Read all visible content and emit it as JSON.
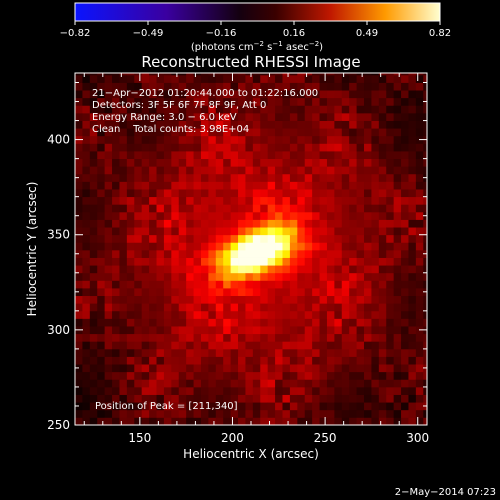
{
  "chart_data": {
    "type": "heatmap",
    "title": "Reconstructed RHESSI Image",
    "xlabel": "Heliocentric X (arcsec)",
    "ylabel": "Heliocentric Y (arcsec)",
    "xlim": [
      115,
      305
    ],
    "ylim": [
      250,
      435
    ],
    "xticks": [
      150,
      200,
      250,
      300
    ],
    "yticks": [
      250,
      300,
      350,
      400
    ],
    "colorbar": {
      "range": [
        -0.82,
        0.82
      ],
      "ticks": [
        "−0.82",
        "−0.49",
        "−0.16",
        "0.16",
        "0.49",
        "0.82"
      ],
      "label_main": "(photons cm",
      "label_exp1": "−2",
      "label_mid1": " s",
      "label_exp2": "−1",
      "label_mid2": " asec",
      "label_exp3": "−2",
      "label_end": ")"
    },
    "annotations": [
      "21−Apr−2012 01:20:44.000 to 01:22:16.000",
      "Detectors: 3F 5F 6F 7F 8F 9F, Att 0",
      "Energy Range: 3.0 − 6.0 keV",
      "Clean    Total counts: 3.98E+04"
    ],
    "peak_label": "Position of Peak = [211,340]",
    "peak": {
      "x": 211,
      "y": 340,
      "value": 0.82
    },
    "source": {
      "center_x": 213,
      "center_y": 341,
      "sigma_major": 14,
      "sigma_minor": 7,
      "angle_deg": 20
    }
  },
  "footer_date": "2−May−2014 07:23"
}
